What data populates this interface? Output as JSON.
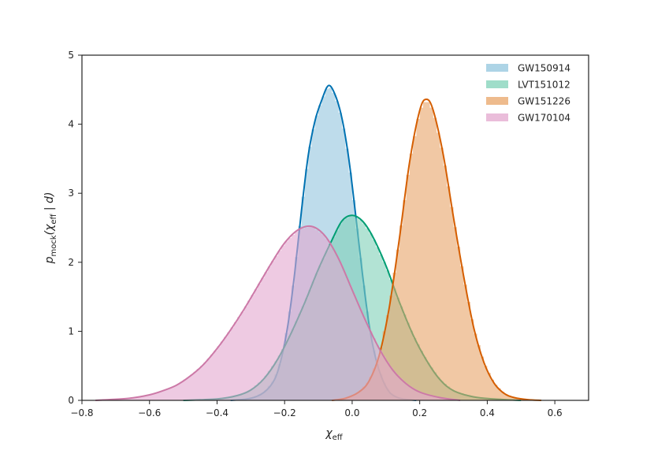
{
  "chart_data": {
    "type": "area",
    "xlabel": "χ",
    "xlabel_sub": "eff",
    "ylabel_parts": {
      "p": "p",
      "mock": "mock",
      "open": "(χ",
      "eff": "eff",
      "rest": " | d)"
    },
    "xlim": [
      -0.8,
      0.7
    ],
    "ylim": [
      0,
      5
    ],
    "x_ticks": [
      -0.8,
      -0.6,
      -0.4,
      -0.2,
      0.0,
      0.2,
      0.4,
      0.6
    ],
    "x_tick_labels": [
      "−0.8",
      "−0.6",
      "−0.4",
      "−0.2",
      "0.0",
      "0.2",
      "0.4",
      "0.6"
    ],
    "y_ticks": [
      0,
      1,
      2,
      3,
      4,
      5
    ],
    "y_tick_labels": [
      "0",
      "1",
      "2",
      "3",
      "4",
      "5"
    ],
    "grid": false,
    "legend_position": "top-right",
    "series": [
      {
        "name": "GW150914",
        "fill": "#92c5de",
        "line": "#0072b2",
        "kde": {
          "x": [
            -0.36,
            -0.3,
            -0.26,
            -0.23,
            -0.21,
            -0.19,
            -0.17,
            -0.15,
            -0.13,
            -0.11,
            -0.09,
            -0.07,
            -0.05,
            -0.03,
            -0.01,
            0.01,
            0.03,
            0.05,
            0.07,
            0.09,
            0.11,
            0.13,
            0.15,
            0.19
          ],
          "y": [
            0.0,
            0.03,
            0.12,
            0.3,
            0.6,
            1.1,
            1.85,
            2.75,
            3.55,
            4.05,
            4.35,
            4.56,
            4.42,
            4.08,
            3.5,
            2.7,
            1.85,
            1.1,
            0.6,
            0.3,
            0.12,
            0.05,
            0.02,
            0.0
          ]
        }
      },
      {
        "name": "LVT151012",
        "fill": "#7fd1b7",
        "line": "#009e73",
        "kde": {
          "x": [
            -0.5,
            -0.4,
            -0.34,
            -0.3,
            -0.26,
            -0.22,
            -0.18,
            -0.14,
            -0.1,
            -0.06,
            -0.03,
            0.0,
            0.03,
            0.06,
            0.1,
            0.14,
            0.18,
            0.22,
            0.26,
            0.3,
            0.36,
            0.42,
            0.5
          ],
          "y": [
            0.0,
            0.02,
            0.07,
            0.15,
            0.32,
            0.6,
            0.98,
            1.42,
            1.9,
            2.32,
            2.6,
            2.68,
            2.6,
            2.38,
            1.95,
            1.42,
            0.95,
            0.58,
            0.3,
            0.14,
            0.05,
            0.02,
            0.0
          ]
        }
      },
      {
        "name": "GW151226",
        "fill": "#e8a467",
        "line": "#d55e00",
        "kde": {
          "x": [
            -0.06,
            -0.02,
            0.02,
            0.05,
            0.08,
            0.11,
            0.14,
            0.17,
            0.2,
            0.22,
            0.24,
            0.27,
            0.3,
            0.33,
            0.36,
            0.39,
            0.42,
            0.45,
            0.48,
            0.52,
            0.56
          ],
          "y": [
            0.0,
            0.03,
            0.12,
            0.28,
            0.65,
            1.35,
            2.35,
            3.45,
            4.2,
            4.36,
            4.2,
            3.55,
            2.65,
            1.8,
            1.05,
            0.55,
            0.25,
            0.1,
            0.04,
            0.01,
            0.0
          ]
        }
      },
      {
        "name": "GW170104",
        "fill": "#e3a7ce",
        "line": "#cc79a7",
        "kde": {
          "x": [
            -0.76,
            -0.66,
            -0.6,
            -0.56,
            -0.52,
            -0.48,
            -0.44,
            -0.4,
            -0.36,
            -0.32,
            -0.28,
            -0.24,
            -0.2,
            -0.16,
            -0.12,
            -0.08,
            -0.04,
            0.0,
            0.04,
            0.08,
            0.12,
            0.16,
            0.2,
            0.26,
            0.32
          ],
          "y": [
            0.0,
            0.03,
            0.08,
            0.14,
            0.22,
            0.35,
            0.52,
            0.75,
            1.02,
            1.32,
            1.65,
            1.98,
            2.28,
            2.47,
            2.52,
            2.38,
            2.05,
            1.6,
            1.15,
            0.75,
            0.44,
            0.24,
            0.12,
            0.04,
            0.0
          ]
        }
      }
    ]
  }
}
